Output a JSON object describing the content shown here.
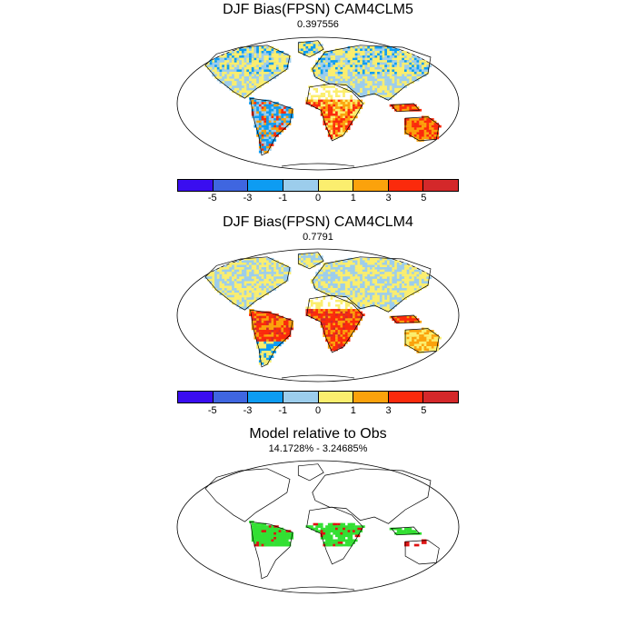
{
  "panels": [
    {
      "title": "DJF Bias(FPSN) CAM4CLM5",
      "subtitle": "0.397556"
    },
    {
      "title": "DJF Bias(FPSN) CAM4CLM4",
      "subtitle": "0.7791"
    },
    {
      "title": "Model relative to Obs",
      "subtitle": "14.1728% - 3.24685%"
    }
  ],
  "colorbar": {
    "colors": [
      "#3a0df0",
      "#3f66e0",
      "#0d9cf2",
      "#9ccdec",
      "#fbee6e",
      "#fba20c",
      "#fb2a0c",
      "#d4282a"
    ],
    "tick_labels": [
      "-5",
      "-3",
      "-1",
      "0",
      "1",
      "3",
      "5"
    ]
  },
  "legend_colors": {
    "better": "#33e033",
    "worse": "#e01010"
  }
}
